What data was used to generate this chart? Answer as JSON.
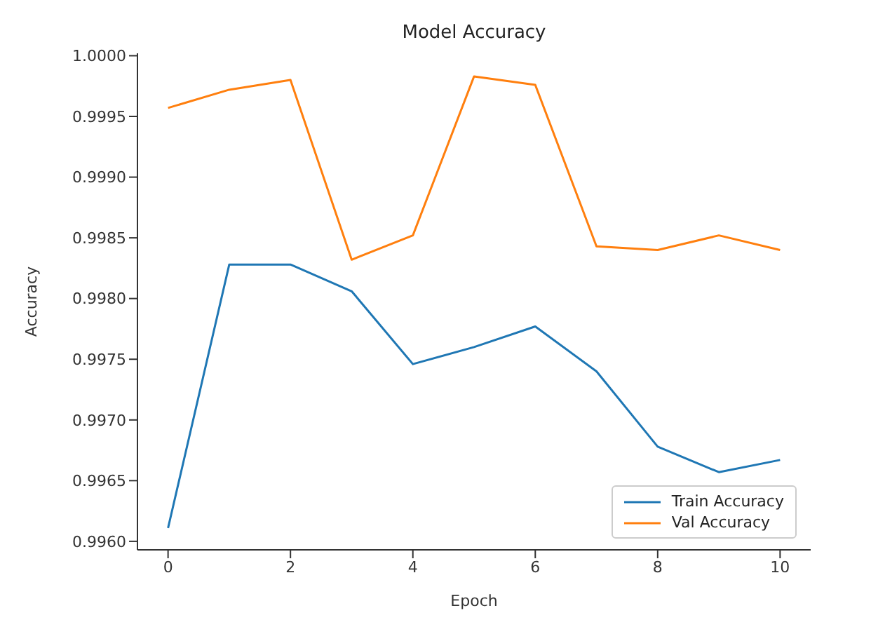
{
  "chart_data": {
    "type": "line",
    "title": "Model Accuracy",
    "xlabel": "Epoch",
    "ylabel": "Accuracy",
    "x": [
      0,
      1,
      2,
      3,
      4,
      5,
      6,
      7,
      8,
      9,
      10
    ],
    "series": [
      {
        "name": "Train Accuracy",
        "color": "#1f77b4",
        "values": [
          0.99611,
          0.99828,
          0.99828,
          0.99806,
          0.99746,
          0.9976,
          0.99777,
          0.9974,
          0.99678,
          0.99657,
          0.99667
        ]
      },
      {
        "name": "Val Accuracy",
        "color": "#ff7f0e",
        "values": [
          0.99957,
          0.99972,
          0.9998,
          0.99832,
          0.99852,
          0.99983,
          0.99976,
          0.99843,
          0.9984,
          0.99852,
          0.9984
        ]
      }
    ],
    "xlim": [
      -0.5,
      10.5
    ],
    "xticks": [
      0,
      2,
      4,
      6,
      8,
      10
    ],
    "ylim": [
      0.99593,
      1.00002
    ],
    "yticks": [
      {
        "value": 0.996,
        "label": "0.9960"
      },
      0.9965,
      {
        "value": 0.997,
        "label": "0.9970"
      },
      0.9975,
      {
        "value": 0.998,
        "label": "0.9980"
      },
      0.9985,
      {
        "value": 0.999,
        "label": "0.9990"
      },
      0.9995,
      {
        "value": 1,
        "label": "1.0000"
      }
    ],
    "grid": false,
    "legend": "bottom right",
    "marker": "none",
    "line_style": "solid"
  }
}
